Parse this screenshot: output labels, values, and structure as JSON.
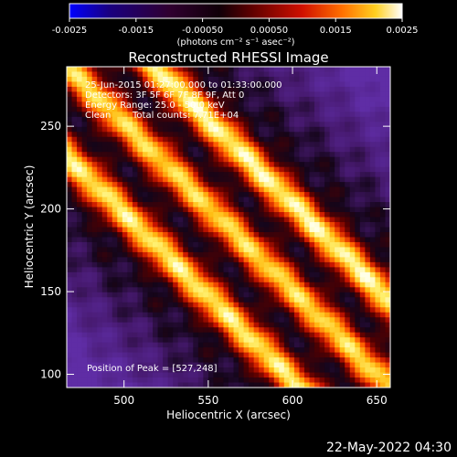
{
  "chart_data": {
    "type": "heatmap",
    "title": "Reconstructed RHESSI Image",
    "xlabel": "Heliocentric X (arcsec)",
    "ylabel": "Heliocentric Y (arcsec)",
    "xlim": [
      466,
      658
    ],
    "ylim": [
      92,
      286
    ],
    "x_ticks": [
      500,
      550,
      600,
      650
    ],
    "y_ticks": [
      100,
      150,
      200,
      250
    ],
    "colorbar": {
      "range": [
        -0.0025,
        0.0025
      ],
      "ticks": [
        "-0.0025",
        "-0.0015",
        "-0.00050",
        "0.00050",
        "0.0015",
        "0.0025"
      ],
      "units_label": "(photons cm⁻² s⁻¹ asec⁻²)"
    },
    "annotations": {
      "time_range": "25-Jun-2015 01:27:00.000 to 01:33:00.000",
      "detectors": "Detectors: 3F 5F 6F 7F 8F 9F, Att 0",
      "energy_range": "Energy Range: 25.0 - 50.0 keV",
      "algorithm": "Clean",
      "total_counts": "Total counts: 7.71E+04",
      "peak_position": "Position of Peak = [527,248]"
    },
    "footer_date": "22-May-2022 04:30",
    "bands": [
      {
        "offset": 0.27,
        "strength": 0.95
      },
      {
        "offset": 0.0,
        "strength": 0.85
      },
      {
        "offset": -0.28,
        "strength": 0.9
      }
    ]
  }
}
